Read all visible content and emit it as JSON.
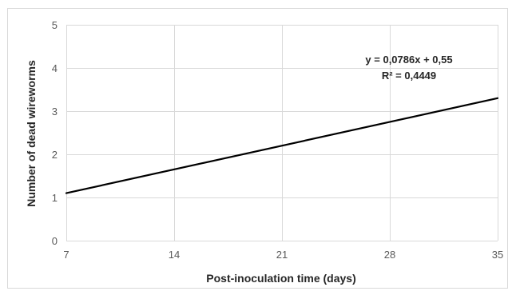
{
  "chart_data": {
    "type": "line",
    "title": "",
    "xlabel": "Post-inoculation time (days)",
    "ylabel": "Number of dead wireworms",
    "xlim": [
      7,
      35
    ],
    "ylim": [
      0,
      5
    ],
    "x_ticks": [
      7,
      14,
      21,
      28,
      35
    ],
    "y_ticks": [
      0,
      1,
      2,
      3,
      4,
      5
    ],
    "grid": true,
    "series": [
      {
        "x": [
          7,
          35
        ],
        "y": [
          1.1,
          3.3
        ],
        "color": "#000000"
      }
    ],
    "annotations": {
      "equation": "y = 0,0786x + 0,55",
      "r_squared": "R² = 0,4449"
    }
  }
}
